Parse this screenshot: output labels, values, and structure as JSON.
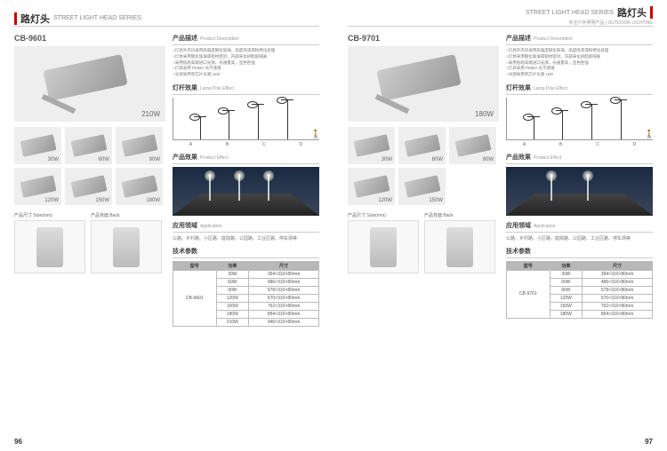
{
  "header": {
    "title_cn": "路灯头",
    "title_en": "STREET LIGHT HEAD SERIES",
    "subtitle_cn": "专注户外照明产品",
    "subtitle_en": "OUTDOOR LIGHTING"
  },
  "pages": {
    "left_num": "96",
    "right_num": "97"
  },
  "sections": {
    "desc": {
      "cn": "产品描述",
      "en": "Product Description"
    },
    "pole": {
      "cn": "灯杆效果",
      "en": "Lamp Pole Effect"
    },
    "effect": {
      "cn": "产品效果",
      "en": "Product Effect"
    },
    "app": {
      "cn": "应用领域",
      "en": "Application"
    },
    "spec": {
      "cn": "技术参数",
      "en": ""
    },
    "size": {
      "cn": "产品尺寸",
      "en": "Size(mm)"
    },
    "back": {
      "cn": "产品背面",
      "en": "Back"
    }
  },
  "desc_lines": [
    "○灯具外壳均采用高强度钢化玻璃，高度喷漆或粉烤化处理",
    "○灯体采用钢化玻璃或铝材密封，内部采化树脂胶隔离",
    "○采用低耗高端进口光源，光通量高，显色性强",
    "○灯具采用 PMMA 光学透镜",
    "○光源采用单芯片光源 LED"
  ],
  "app_text": "公路、乡村路、小区路、庭院路、公园路、工业区路、停车场等",
  "chart_labels": [
    "A",
    "B",
    "C",
    "D"
  ],
  "table_headers": {
    "model": "型号",
    "power": "功率",
    "size": "尺寸"
  },
  "left": {
    "model": "CB-9601",
    "hero_watt": "210W",
    "thumbs": [
      "30W",
      "60W",
      "90W",
      "120W",
      "150W",
      "180W"
    ],
    "table_model": "CB-9601",
    "rows": [
      {
        "p": "30W",
        "s": "394×310×80mm"
      },
      {
        "p": "60W",
        "s": "486×310×80mm"
      },
      {
        "p": "90W",
        "s": "578×310×80mm"
      },
      {
        "p": "120W",
        "s": "670×310×80mm"
      },
      {
        "p": "150W",
        "s": "762×310×80mm"
      },
      {
        "p": "180W",
        "s": "854×310×80mm"
      },
      {
        "p": "210W",
        "s": "946×310×80mm"
      }
    ]
  },
  "right": {
    "model": "CB-9701",
    "hero_watt": "180W",
    "thumbs": [
      "30W",
      "60W",
      "90W",
      "120W",
      "150W"
    ],
    "table_model": "CB-9701",
    "rows": [
      {
        "p": "30W",
        "s": "394×310×80mm"
      },
      {
        "p": "60W",
        "s": "486×310×80mm"
      },
      {
        "p": "90W",
        "s": "578×310×80mm"
      },
      {
        "p": "120W",
        "s": "670×310×80mm"
      },
      {
        "p": "150W",
        "s": "762×310×80mm"
      },
      {
        "p": "180W",
        "s": "854×310×80mm"
      }
    ]
  },
  "colors": {
    "accent": "#c00",
    "grey": "#b8b8b8"
  }
}
